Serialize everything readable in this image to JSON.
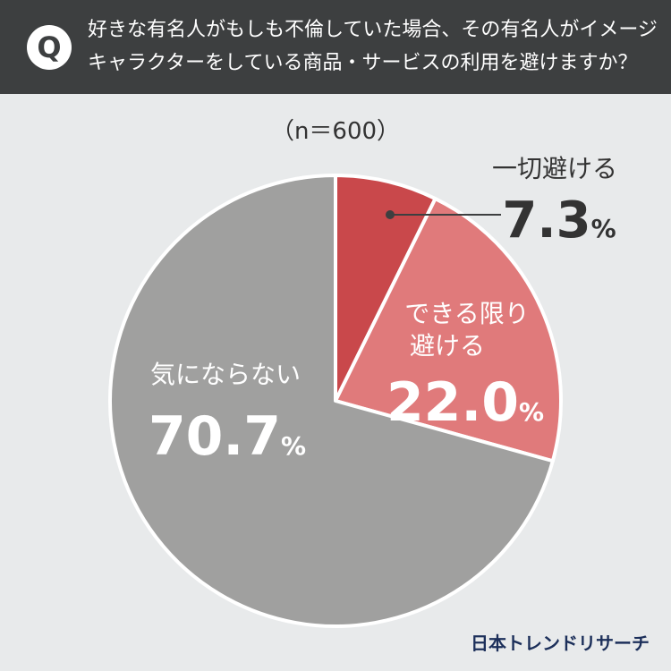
{
  "header": {
    "icon_letter": "Q",
    "question_line1": "好きな有名人がもしも不倫していた場合、その有名人がイメージ",
    "question_line2": "キャラクターをしている商品・サービスの利用を避けますか？"
  },
  "sample_size": "（n＝600）",
  "brand": "日本トレンドリサーチ",
  "colors": {
    "header_bg": "#3d3f40",
    "background": "#e8eaeb",
    "slice_avoid_all": "#c9484b",
    "slice_avoid_possible": "#e07a7b",
    "slice_not_care": "#a0a09f",
    "text_dark": "#333333",
    "text_light": "#ffffff"
  },
  "chart_data": {
    "type": "pie",
    "start_angle_deg": 0,
    "direction": "clockwise",
    "slices": [
      {
        "label_lines": [
          "一切避ける"
        ],
        "value": 7.3,
        "display_value": "7.3",
        "unit": "%",
        "color": "#c9484b"
      },
      {
        "label_lines": [
          "できる限り",
          "避ける"
        ],
        "value": 22.0,
        "display_value": "22.0",
        "unit": "%",
        "color": "#e07a7b"
      },
      {
        "label_lines": [
          "気にならない"
        ],
        "value": 70.7,
        "display_value": "70.7",
        "unit": "%",
        "color": "#a0a09f"
      }
    ]
  }
}
